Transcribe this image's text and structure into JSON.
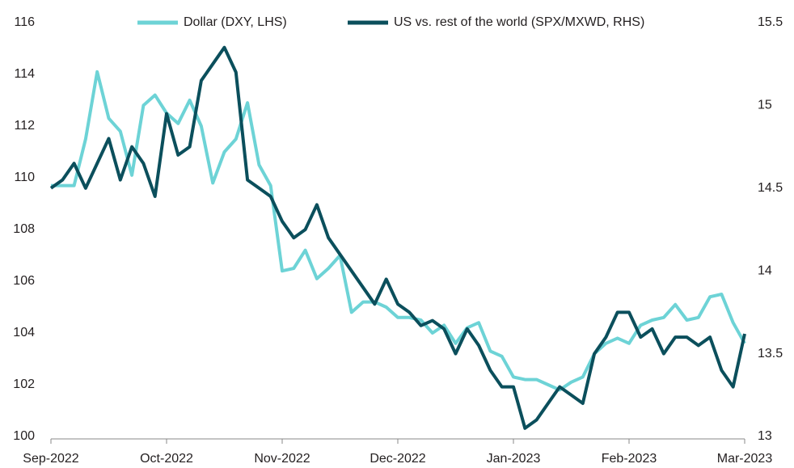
{
  "chart_data": {
    "type": "line",
    "categories": [
      "Sep-2022",
      null,
      null,
      null,
      null,
      null,
      null,
      null,
      null,
      null,
      "Oct-2022",
      null,
      null,
      null,
      null,
      null,
      null,
      null,
      null,
      null,
      "Nov-2022",
      null,
      null,
      null,
      null,
      null,
      null,
      null,
      null,
      null,
      "Dec-2022",
      null,
      null,
      null,
      null,
      null,
      null,
      null,
      null,
      null,
      "Jan-2023",
      null,
      null,
      null,
      null,
      null,
      null,
      null,
      null,
      null,
      "Feb-2023",
      null,
      null,
      null,
      null,
      null,
      null,
      null,
      null,
      null,
      "Mar-2023"
    ],
    "series": [
      {
        "name": "Dollar (DXY, LHS)",
        "color": "#6dd3d6",
        "values": [
          109.7,
          109.7,
          109.7,
          111.5,
          114.1,
          112.3,
          111.8,
          110.1,
          112.8,
          113.2,
          112.5,
          112.1,
          113,
          112,
          109.8,
          111,
          111.5,
          112.9,
          110.5,
          109.7,
          106.4,
          106.5,
          107.2,
          106.1,
          106.5,
          107,
          104.8,
          105.2,
          105.2,
          105.0,
          104.6,
          104.6,
          104.5,
          104.0,
          104.3,
          103.6,
          104.2,
          104.4,
          103.3,
          103.1,
          102.3,
          102.2,
          102.2,
          102,
          101.8,
          102.1,
          102.3,
          103.2,
          103.6,
          103.8,
          103.6,
          104.3,
          104.5,
          104.6,
          105.1,
          104.5,
          104.6,
          105.4,
          105.5,
          104.4,
          103.6
        ]
      },
      {
        "name": "US vs. rest of the world (SPX/MXWD, RHS)",
        "color": "#0b4f5c",
        "axis": "y2",
        "values": [
          14.5,
          14.55,
          14.65,
          14.5,
          14.65,
          14.8,
          14.55,
          14.75,
          14.65,
          14.45,
          14.95,
          14.7,
          14.75,
          15.15,
          15.25,
          15.35,
          15.2,
          14.55,
          14.5,
          14.45,
          14.3,
          14.2,
          14.25,
          14.4,
          14.2,
          14.1,
          14.0,
          13.9,
          13.8,
          13.95,
          13.8,
          13.75,
          13.67,
          13.7,
          13.65,
          13.5,
          13.65,
          13.55,
          13.4,
          13.3,
          13.3,
          13.05,
          13.1,
          13.2,
          13.3,
          13.25,
          13.2,
          13.5,
          13.6,
          13.75,
          13.75,
          13.6,
          13.65,
          13.5,
          13.6,
          13.6,
          13.55,
          13.6,
          13.4,
          13.3,
          13.62
        ]
      }
    ],
    "ylim": [
      100,
      116
    ],
    "yticks": [
      100,
      102,
      104,
      106,
      108,
      110,
      112,
      114,
      116
    ],
    "y2lim": [
      13,
      15.5
    ],
    "y2ticks": [
      13,
      13.5,
      14,
      14.5,
      15,
      15.5
    ],
    "legend": "top"
  }
}
